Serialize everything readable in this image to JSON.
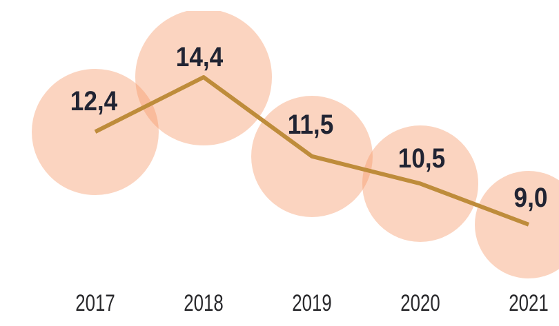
{
  "chart_data": {
    "type": "line",
    "variant": "line-with-proportional-bubble-markers",
    "categories": [
      "2017",
      "2018",
      "2019",
      "2020",
      "2021"
    ],
    "values": [
      12.4,
      14.4,
      11.5,
      10.5,
      9.0
    ],
    "value_labels": [
      "12,4",
      "14,4",
      "11,5",
      "10,5",
      "9,0"
    ],
    "title": "",
    "xlabel": "",
    "ylabel": "",
    "decimal_separator": ",",
    "grid": false,
    "legend": false,
    "y_axis_visible": false,
    "bubble_size_rule": "area proportional to value",
    "colors": {
      "background": "#FFFFFF",
      "bubble_fill": "rgba(246,152,105,0.42)",
      "line": "#BE8C3B",
      "value_label": "#212433",
      "axis_label": "#29292C"
    }
  }
}
